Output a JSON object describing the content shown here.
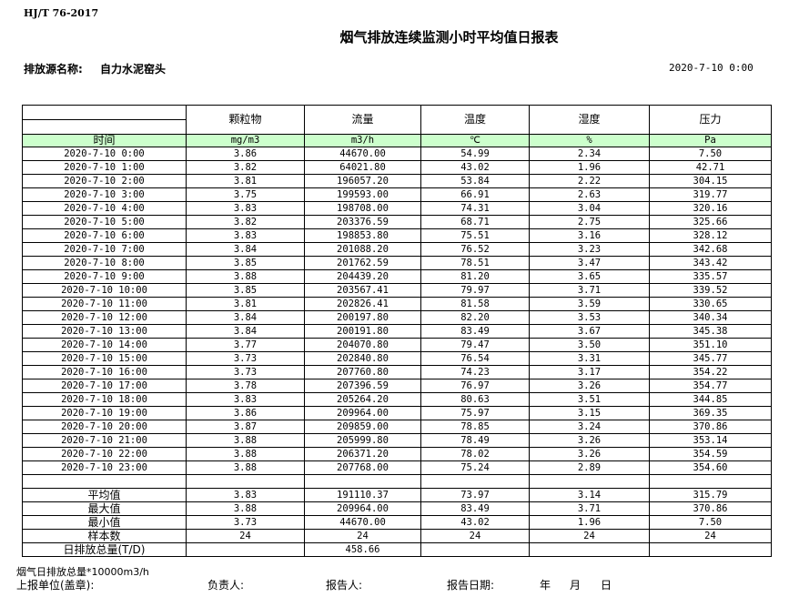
{
  "header": {
    "standard": "HJ/T 76-2017",
    "title": "烟气排放连续监测小时平均值日报表",
    "source_label": "排放源名称:",
    "source_value": "自力水泥窑头",
    "datetime": "2020-7-10 0:00"
  },
  "table": {
    "columns": [
      "颗粒物",
      "流量",
      "温度",
      "湿度",
      "压力"
    ],
    "time_label": "时间",
    "units": [
      "mg/m3",
      "m3/h",
      "℃",
      "%",
      "Pa"
    ],
    "rows": [
      [
        "2020-7-10 0:00",
        "3.86",
        "44670.00",
        "54.99",
        "2.34",
        "7.50"
      ],
      [
        "2020-7-10 1:00",
        "3.82",
        "64021.80",
        "43.02",
        "1.96",
        "42.71"
      ],
      [
        "2020-7-10 2:00",
        "3.81",
        "196057.20",
        "53.84",
        "2.22",
        "304.15"
      ],
      [
        "2020-7-10 3:00",
        "3.75",
        "199593.00",
        "66.91",
        "2.63",
        "319.77"
      ],
      [
        "2020-7-10 4:00",
        "3.83",
        "198708.00",
        "74.31",
        "3.04",
        "320.16"
      ],
      [
        "2020-7-10 5:00",
        "3.82",
        "203376.59",
        "68.71",
        "2.75",
        "325.66"
      ],
      [
        "2020-7-10 6:00",
        "3.83",
        "198853.80",
        "75.51",
        "3.16",
        "328.12"
      ],
      [
        "2020-7-10 7:00",
        "3.84",
        "201088.20",
        "76.52",
        "3.23",
        "342.68"
      ],
      [
        "2020-7-10 8:00",
        "3.85",
        "201762.59",
        "78.51",
        "3.47",
        "343.42"
      ],
      [
        "2020-7-10 9:00",
        "3.88",
        "204439.20",
        "81.20",
        "3.65",
        "335.57"
      ],
      [
        "2020-7-10 10:00",
        "3.85",
        "203567.41",
        "79.97",
        "3.71",
        "339.52"
      ],
      [
        "2020-7-10 11:00",
        "3.81",
        "202826.41",
        "81.58",
        "3.59",
        "330.65"
      ],
      [
        "2020-7-10 12:00",
        "3.84",
        "200197.80",
        "82.20",
        "3.53",
        "340.34"
      ],
      [
        "2020-7-10 13:00",
        "3.84",
        "200191.80",
        "83.49",
        "3.67",
        "345.38"
      ],
      [
        "2020-7-10 14:00",
        "3.77",
        "204070.80",
        "79.47",
        "3.50",
        "351.10"
      ],
      [
        "2020-7-10 15:00",
        "3.73",
        "202840.80",
        "76.54",
        "3.31",
        "345.77"
      ],
      [
        "2020-7-10 16:00",
        "3.73",
        "207760.80",
        "74.23",
        "3.17",
        "354.22"
      ],
      [
        "2020-7-10 17:00",
        "3.78",
        "207396.59",
        "76.97",
        "3.26",
        "354.77"
      ],
      [
        "2020-7-10 18:00",
        "3.83",
        "205264.20",
        "80.63",
        "3.51",
        "344.85"
      ],
      [
        "2020-7-10 19:00",
        "3.86",
        "209964.00",
        "75.97",
        "3.15",
        "369.35"
      ],
      [
        "2020-7-10 20:00",
        "3.87",
        "209859.00",
        "78.85",
        "3.24",
        "370.86"
      ],
      [
        "2020-7-10 21:00",
        "3.88",
        "205999.80",
        "78.49",
        "3.26",
        "353.14"
      ],
      [
        "2020-7-10 22:00",
        "3.88",
        "206371.20",
        "78.02",
        "3.26",
        "354.59"
      ],
      [
        "2020-7-10 23:00",
        "3.88",
        "207768.00",
        "75.24",
        "2.89",
        "354.60"
      ]
    ],
    "stats": [
      [
        "平均值",
        "3.83",
        "191110.37",
        "73.97",
        "3.14",
        "315.79"
      ],
      [
        "最大值",
        "3.88",
        "209964.00",
        "83.49",
        "3.71",
        "370.86"
      ],
      [
        "最小值",
        "3.73",
        "44670.00",
        "43.02",
        "1.96",
        "7.50"
      ],
      [
        "样本数",
        "24",
        "24",
        "24",
        "24",
        "24"
      ],
      [
        "日排放总量(T/D)",
        "",
        "458.66",
        "",
        "",
        ""
      ]
    ]
  },
  "footer": {
    "note": "烟气日排放总量*10000m3/h",
    "unit_label": "上报单位(盖章):",
    "responsible": "负责人:",
    "reporter": "报告人:",
    "report_date": "报告日期:",
    "year": "年",
    "month": "月",
    "day": "日"
  }
}
